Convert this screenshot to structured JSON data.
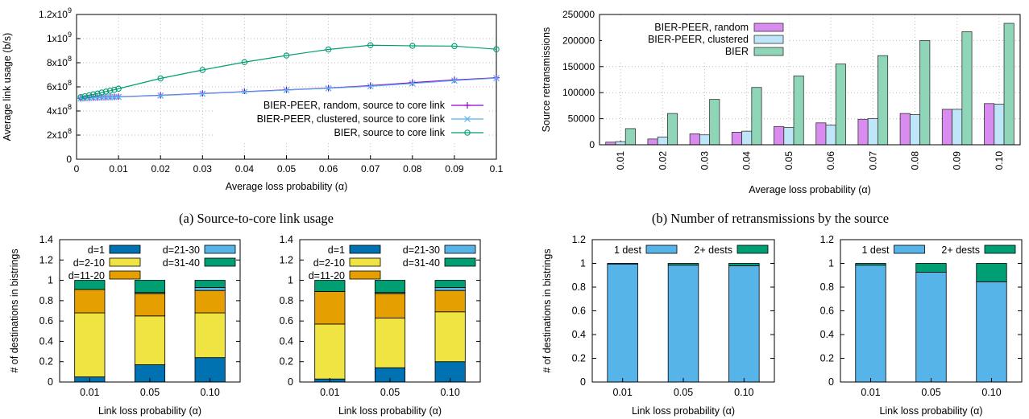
{
  "captions": {
    "a": "(a) Source-to-core link usage",
    "b": "(b) Number of retransmissions by the source"
  },
  "chart_data": [
    {
      "id": "a",
      "type": "line",
      "xlabel": "Average loss probability (α)",
      "ylabel": "Average link usage (b/s)",
      "xlim": [
        0,
        0.1
      ],
      "ylim": [
        0,
        1200000000
      ],
      "xticks": [
        0,
        0.01,
        0.02,
        0.03,
        0.04,
        0.05,
        0.06,
        0.07,
        0.08,
        0.09,
        0.1
      ],
      "xtick_labels": [
        "0",
        "0.01",
        "0.02",
        "0.03",
        "0.04",
        "0.05",
        "0.06",
        "0.07",
        "0.08",
        "0.09",
        "0.1"
      ],
      "yticks": [
        0,
        200000000,
        400000000,
        600000000,
        800000000,
        1000000000,
        1200000000
      ],
      "ytick_labels": [
        {
          "base": "0",
          "exp": ""
        },
        {
          "base": "2x10",
          "exp": "8"
        },
        {
          "base": "4x10",
          "exp": "8"
        },
        {
          "base": "6x10",
          "exp": "8"
        },
        {
          "base": "8x10",
          "exp": "8"
        },
        {
          "base": "1x10",
          "exp": "9"
        },
        {
          "base": "1.2x10",
          "exp": "9"
        }
      ],
      "grid": true,
      "legend_position": "bottom-right",
      "series": [
        {
          "name": "BIER-PEER, random, source to core link",
          "color": "#9400d3",
          "marker": "plus",
          "x": [
            0.001,
            0.002,
            0.003,
            0.004,
            0.005,
            0.006,
            0.007,
            0.008,
            0.009,
            0.01,
            0.02,
            0.03,
            0.04,
            0.05,
            0.06,
            0.07,
            0.08,
            0.09,
            0.1
          ],
          "y": [
            505000000,
            507000000,
            509000000,
            511000000,
            512000000,
            514000000,
            515000000,
            516000000,
            517000000,
            518000000,
            530000000,
            545000000,
            560000000,
            575000000,
            590000000,
            610000000,
            635000000,
            658000000,
            675000000
          ]
        },
        {
          "name": "BIER-PEER, clustered, source to core link",
          "color": "#56b4e9",
          "marker": "cross",
          "x": [
            0.001,
            0.002,
            0.003,
            0.004,
            0.005,
            0.006,
            0.007,
            0.008,
            0.009,
            0.01,
            0.02,
            0.03,
            0.04,
            0.05,
            0.06,
            0.07,
            0.08,
            0.09,
            0.1
          ],
          "y": [
            503000000,
            505000000,
            507000000,
            509000000,
            510000000,
            512000000,
            513000000,
            514000000,
            515000000,
            516000000,
            528000000,
            543000000,
            558000000,
            573000000,
            588000000,
            605000000,
            628000000,
            652000000,
            672000000
          ]
        },
        {
          "name": "BIER, source to core link",
          "color": "#009e73",
          "marker": "circle",
          "x": [
            0.001,
            0.002,
            0.003,
            0.004,
            0.005,
            0.006,
            0.007,
            0.008,
            0.009,
            0.01,
            0.02,
            0.03,
            0.04,
            0.05,
            0.06,
            0.07,
            0.08,
            0.09,
            0.1
          ],
          "y": [
            515000000,
            522000000,
            530000000,
            538000000,
            545000000,
            553000000,
            561000000,
            568000000,
            576000000,
            585000000,
            670000000,
            740000000,
            805000000,
            860000000,
            910000000,
            945000000,
            940000000,
            938000000,
            912000000
          ]
        }
      ]
    },
    {
      "id": "b",
      "type": "bar",
      "xlabel": "Average loss probability (α)",
      "ylabel": "Source retransmissions",
      "categories": [
        "0.01",
        "0.02",
        "0.03",
        "0.04",
        "0.05",
        "0.06",
        "0.07",
        "0.08",
        "0.09",
        "0.10"
      ],
      "ylim": [
        0,
        250000
      ],
      "yticks": [
        0,
        50000,
        100000,
        150000,
        200000,
        250000
      ],
      "grid": true,
      "legend_position": "top-left",
      "series": [
        {
          "name": "BIER-PEER, random",
          "color": "#da8bf0",
          "values": [
            5000,
            11000,
            21000,
            24000,
            35000,
            42000,
            49000,
            60000,
            68000,
            79000
          ]
        },
        {
          "name": "BIER-PEER, clustered",
          "color": "#bfe6f8",
          "values": [
            6000,
            15000,
            19000,
            26000,
            33000,
            38000,
            50000,
            58000,
            68000,
            78000
          ]
        },
        {
          "name": "BIER",
          "color": "#8fd6b8",
          "values": [
            31000,
            60000,
            87000,
            110000,
            132000,
            155000,
            171000,
            200000,
            217000,
            233000
          ]
        }
      ]
    },
    {
      "id": "c1",
      "type": "bar",
      "stacked": true,
      "xlabel": "Link loss probability (α)",
      "ylabel": "# of destinations in bistrings",
      "categories": [
        "0.01",
        "0.05",
        "0.10"
      ],
      "ylim": [
        0,
        1.4
      ],
      "yticks": [
        0,
        0.2,
        0.4,
        0.6,
        0.8,
        1,
        1.2,
        1.4
      ],
      "ytick_labels": [
        "0",
        "0.2",
        "0.4",
        "0.6",
        "0.8",
        "1",
        "1.2",
        "1.4"
      ],
      "series": [
        {
          "name": "d=1",
          "color": "#0072b2",
          "values": [
            0.05,
            0.17,
            0.24
          ]
        },
        {
          "name": "d=2-10",
          "color": "#f0e442",
          "values": [
            0.63,
            0.48,
            0.44
          ]
        },
        {
          "name": "d=11-20",
          "color": "#e69f00",
          "values": [
            0.23,
            0.22,
            0.22
          ]
        },
        {
          "name": "d=21-30",
          "color": "#56b4e9",
          "values": [
            0.0,
            0.01,
            0.03
          ]
        },
        {
          "name": "d=31-40",
          "color": "#009e73",
          "values": [
            0.09,
            0.12,
            0.07
          ]
        }
      ]
    },
    {
      "id": "c2",
      "type": "bar",
      "stacked": true,
      "xlabel": "Link loss probability (α)",
      "ylabel": "",
      "categories": [
        "0.01",
        "0.05",
        "0.10"
      ],
      "ylim": [
        0,
        1.4
      ],
      "yticks": [
        0,
        0.2,
        0.4,
        0.6,
        0.8,
        1,
        1.2,
        1.4
      ],
      "ytick_labels": [
        "0",
        "0.2",
        "0.4",
        "0.6",
        "0.8",
        "1",
        "1.2",
        "1.4"
      ],
      "series": [
        {
          "name": "d=1",
          "color": "#0072b2",
          "values": [
            0.03,
            0.14,
            0.2
          ]
        },
        {
          "name": "d=2-10",
          "color": "#f0e442",
          "values": [
            0.54,
            0.49,
            0.49
          ]
        },
        {
          "name": "d=11-20",
          "color": "#e69f00",
          "values": [
            0.32,
            0.24,
            0.21
          ]
        },
        {
          "name": "d=21-30",
          "color": "#56b4e9",
          "values": [
            0.0,
            0.01,
            0.03
          ]
        },
        {
          "name": "d=31-40",
          "color": "#009e73",
          "values": [
            0.11,
            0.12,
            0.07
          ]
        }
      ]
    },
    {
      "id": "d1",
      "type": "bar",
      "stacked": true,
      "xlabel": "Link loss probability (α)",
      "ylabel": "# of destinations in bistrings",
      "categories": [
        "0.01",
        "0.05",
        "0.10"
      ],
      "ylim": [
        0,
        1.2
      ],
      "yticks": [
        0,
        0.2,
        0.4,
        0.6,
        0.8,
        1,
        1.2
      ],
      "ytick_labels": [
        "0",
        "0.2",
        "0.4",
        "0.6",
        "0.8",
        "1",
        "1.2"
      ],
      "series": [
        {
          "name": "1 dest",
          "color": "#56b4e9",
          "values": [
            0.995,
            0.985,
            0.98
          ]
        },
        {
          "name": "2+ dests",
          "color": "#009e73",
          "values": [
            0.005,
            0.015,
            0.02
          ]
        }
      ]
    },
    {
      "id": "d2",
      "type": "bar",
      "stacked": true,
      "xlabel": "Link loss probability (α)",
      "ylabel": "",
      "categories": [
        "0.01",
        "0.05",
        "0.10"
      ],
      "ylim": [
        0,
        1.2
      ],
      "yticks": [
        0,
        0.2,
        0.4,
        0.6,
        0.8,
        1,
        1.2
      ],
      "ytick_labels": [
        "0",
        "0.2",
        "0.4",
        "0.6",
        "0.8",
        "1",
        "1.2"
      ],
      "series": [
        {
          "name": "1 dest",
          "color": "#56b4e9",
          "values": [
            0.985,
            0.925,
            0.845
          ]
        },
        {
          "name": "2+ dests",
          "color": "#009e73",
          "values": [
            0.015,
            0.075,
            0.155
          ]
        }
      ]
    }
  ]
}
